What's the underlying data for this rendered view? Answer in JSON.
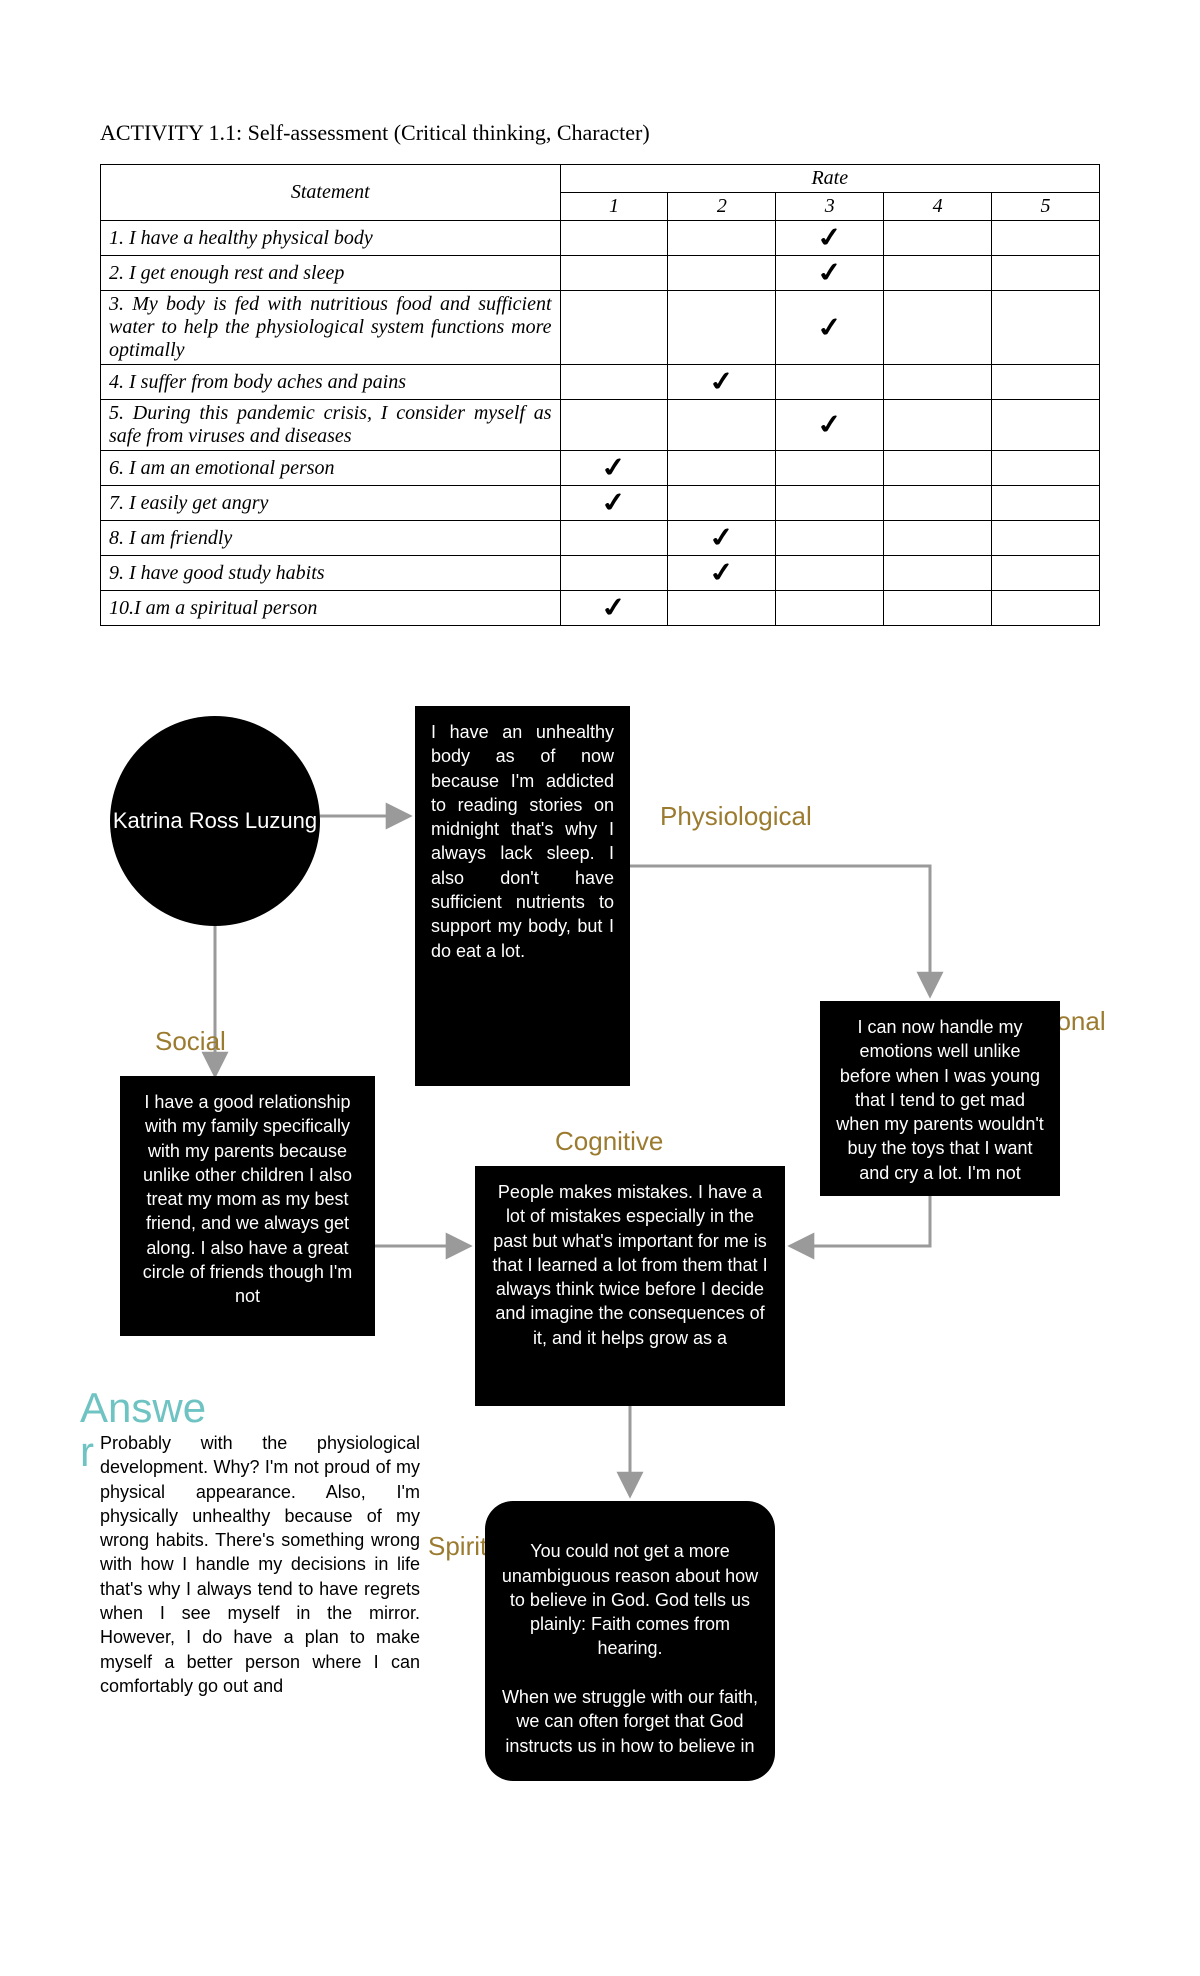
{
  "activity_title": "ACTIVITY 1.1: Self-assessment (Critical thinking, Character)",
  "table": {
    "col_statement": "Statement",
    "col_rate": "Rate",
    "rate_labels": [
      "1",
      "2",
      "3",
      "4",
      "5"
    ],
    "rows": [
      {
        "text": "1. I have a healthy physical body",
        "rate": 3
      },
      {
        "text": "2. I get enough rest and sleep",
        "rate": 3
      },
      {
        "text": "3. My body is fed with nutritious food and sufficient water to help the physiological system functions more optimally",
        "rate": 3
      },
      {
        "text": "4. I suffer from body aches and pains",
        "rate": 2
      },
      {
        "text": "5. During this pandemic crisis, I consider myself as safe from viruses and diseases",
        "rate": 3
      },
      {
        "text": "6. I am an emotional person",
        "rate": 1
      },
      {
        "text": "7. I easily get angry",
        "rate": 1
      },
      {
        "text": "8. I am friendly",
        "rate": 2
      },
      {
        "text": "9. I have good study habits",
        "rate": 2
      },
      {
        "text": "10.I am a spiritual person",
        "rate": 1
      }
    ]
  },
  "diagram": {
    "center_name": "Katrina Ross Luzung",
    "labels": {
      "physiological": "Physiological",
      "social": "Social",
      "emotional": "Emotional",
      "cognitive": "Cognitive",
      "spiritual": "Spiritual"
    },
    "physio_text": "I have an unhealthy body as of now because I'm addicted to reading stories on midnight that's why I always lack sleep. I also don't have sufficient nutrients to support my body, but I do eat a lot.",
    "social_text": "I have a good relationship with my family specifically with my parents because unlike other children I also treat my mom as my best friend, and we always get along. I also have a great circle of friends though I'm not",
    "emotional_text": "I can now handle my emotions well unlike before when I was young that I tend to get mad when my parents wouldn't buy the toys that I want and cry a lot. I'm not",
    "cognitive_text": "People makes mistakes. I have a lot of mistakes especially in the past but what's important for me is that I learned a lot from them that I always think twice before I decide and imagine the consequences of it, and it helps grow as a",
    "spiritual_text": "You could not get a more unambiguous reason about how to believe in God. God tells us plainly: Faith comes from hearing.\n\nWhen we struggle with our faith, we can often forget that God instructs us in how to believe in",
    "answer_label": "Answer",
    "answer_text": "Probably with the physiological development. Why? I'm not proud of my physical appearance. Also, I'm physically unhealthy because of my wrong habits. There's something wrong with how I handle my decisions in life that's why I always tend to have regrets when I see myself in the mirror. However, I do have a plan to make myself a better person where I can comfortably go out and"
  },
  "colors": {
    "category": "#9b7b2f",
    "answer": "#6fc3c3",
    "arrow": "#9a9a9a"
  }
}
